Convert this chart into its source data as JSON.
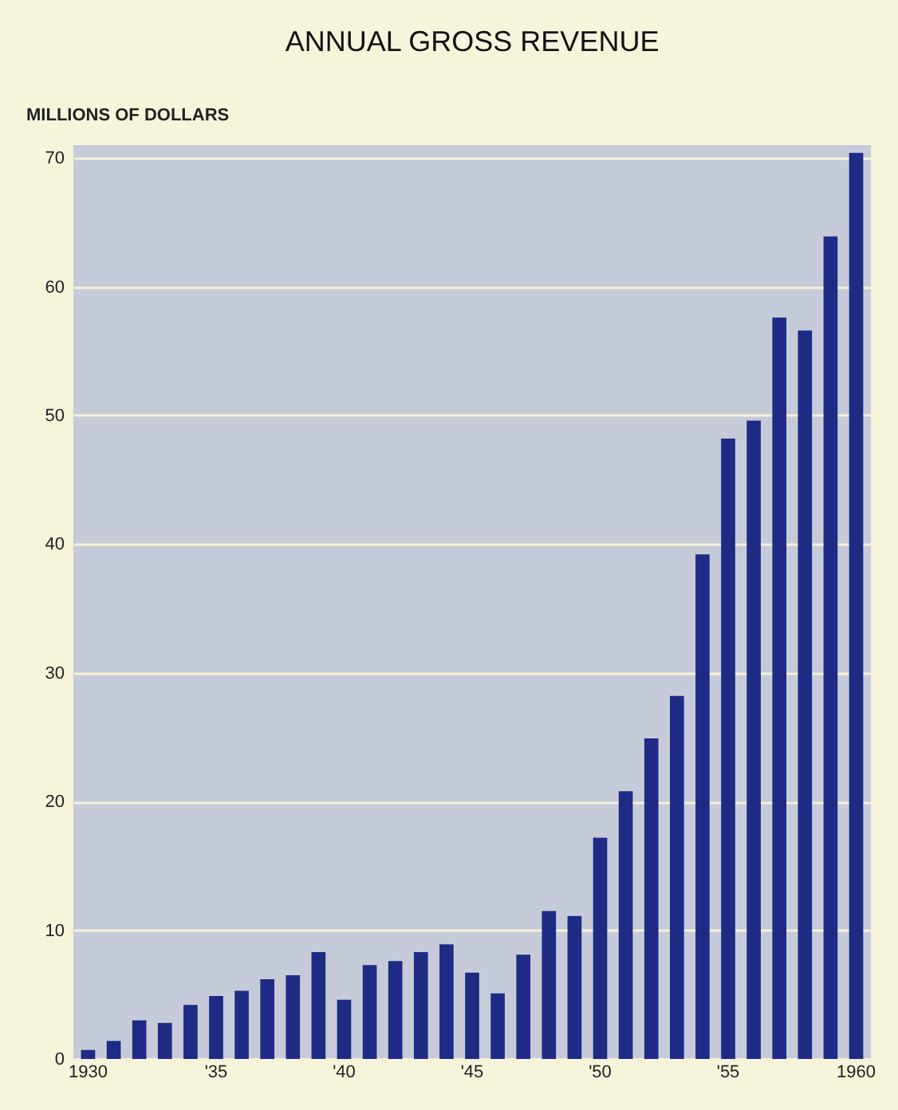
{
  "chart_data": {
    "type": "bar",
    "title": "ANNUAL GROSS REVENUE",
    "ylabel": "MILLIONS OF DOLLARS",
    "categories": [
      "1930",
      null,
      null,
      null,
      null,
      "'35",
      null,
      null,
      null,
      null,
      "'40",
      null,
      null,
      null,
      null,
      "'45",
      null,
      null,
      null,
      null,
      "'50",
      null,
      null,
      null,
      null,
      "'55",
      null,
      null,
      null,
      null,
      "1960"
    ],
    "values": [
      0.7,
      1.4,
      3.0,
      2.8,
      4.2,
      4.9,
      5.3,
      6.2,
      6.5,
      8.3,
      4.6,
      7.3,
      7.6,
      8.3,
      8.9,
      6.7,
      5.1,
      8.1,
      11.5,
      11.1,
      17.2,
      20.8,
      24.9,
      28.2,
      39.2,
      48.2,
      49.6,
      57.6,
      56.6,
      63.9,
      70.4
    ],
    "color": "#1f2a85",
    "ylim": [
      0,
      71
    ],
    "yticks": [
      0,
      10,
      20,
      30,
      40,
      50,
      60,
      70
    ],
    "grid": "y"
  }
}
